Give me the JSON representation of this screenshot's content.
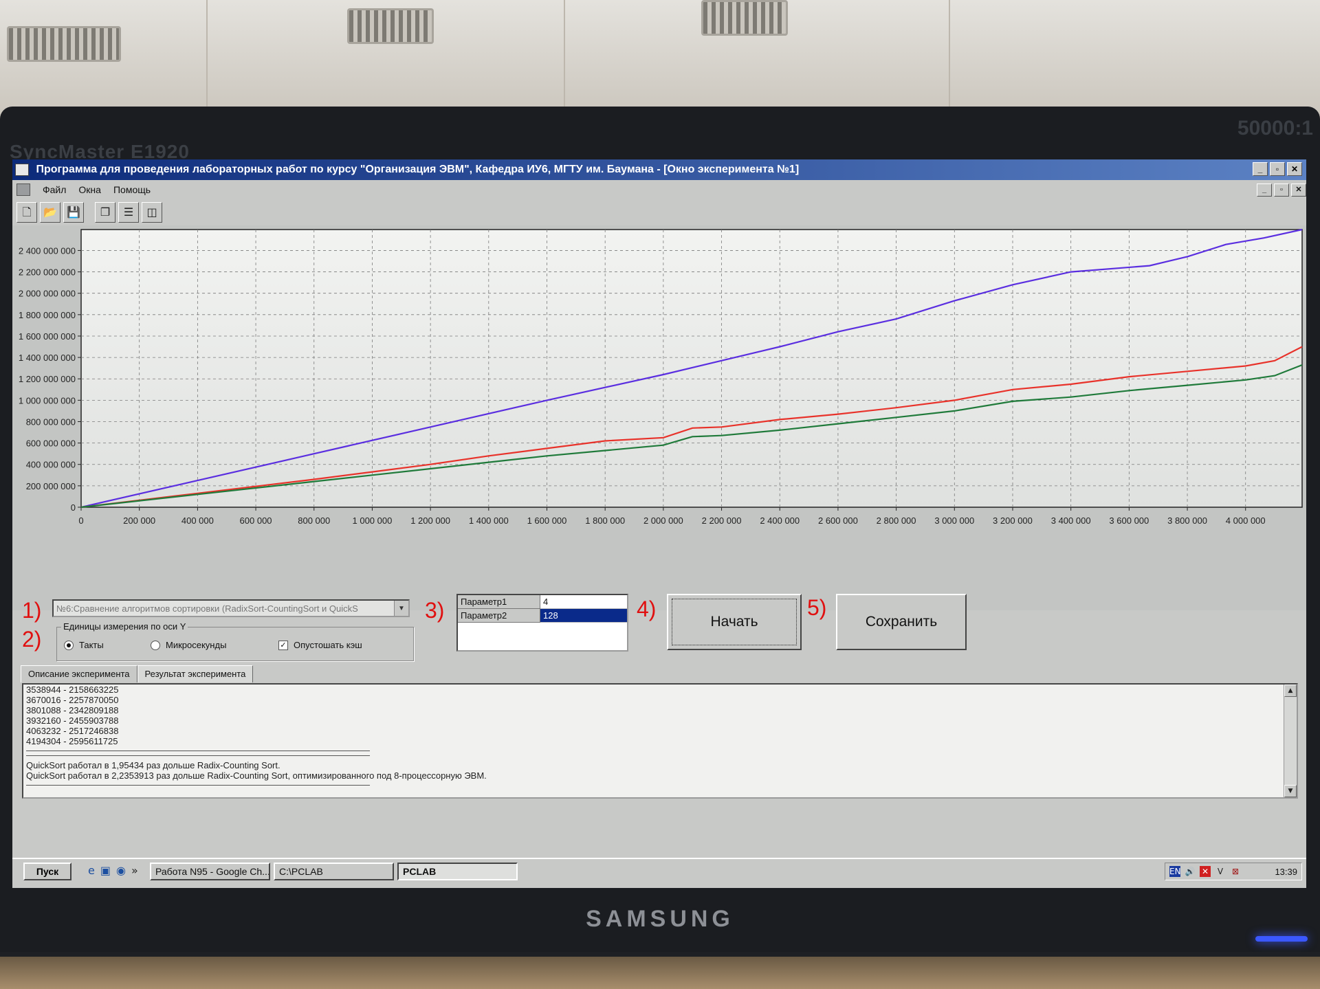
{
  "window": {
    "title": "Программа для проведения лабораторных работ по курсу \"Организация ЭВМ\", Кафедра ИУ6, МГТУ им. Баумана - [Окно эксперимента №1]",
    "controls": [
      "_",
      "▫",
      "✕"
    ]
  },
  "menu": {
    "items": [
      "Файл",
      "Окна",
      "Помощь"
    ]
  },
  "toolbar": {
    "icons": [
      "new-icon",
      "open-icon",
      "save-icon",
      "cascade-icon",
      "tile-horizontal-icon",
      "tile-vertical-icon"
    ]
  },
  "monitor": {
    "model": "SyncMaster E1920",
    "brand": "SAMSUNG",
    "contrast": "50000:1"
  },
  "chart_data": {
    "type": "line",
    "xlim": [
      0,
      4194304
    ],
    "ylim": [
      0,
      2595611725
    ],
    "x_ticks": [
      "0",
      "200 000",
      "400 000",
      "600 000",
      "800 000",
      "1 000 000",
      "1 200 000",
      "1 400 000",
      "1 600 000",
      "1 800 000",
      "2 000 000",
      "2 200 000",
      "2 400 000",
      "2 600 000",
      "2 800 000",
      "3 000 000",
      "3 200 000",
      "3 400 000",
      "3 600 000",
      "3 800 000",
      "4 000 000"
    ],
    "y_ticks": [
      "0",
      "200 000 000",
      "400 000 000",
      "600 000 000",
      "800 000 000",
      "1 000 000 000",
      "1 200 000 000",
      "1 400 000 000",
      "1 600 000 000",
      "1 800 000 000",
      "2 000 000 000",
      "2 200 000 000",
      "2 400 000 000"
    ],
    "grid": true,
    "series": [
      {
        "color": "#5a2ee0",
        "points": [
          [
            0,
            0
          ],
          [
            400000,
            250000000
          ],
          [
            800000,
            500000000
          ],
          [
            1200000,
            750000000
          ],
          [
            1600000,
            1000000000
          ],
          [
            2000000,
            1240000000
          ],
          [
            2400000,
            1500000000
          ],
          [
            2600000,
            1640000000
          ],
          [
            2800000,
            1760000000
          ],
          [
            3000000,
            1930000000
          ],
          [
            3200000,
            2080000000
          ],
          [
            3400000,
            2200000000
          ],
          [
            3670016,
            2257870050
          ],
          [
            3801088,
            2342809188
          ],
          [
            3932160,
            2455903788
          ],
          [
            4063232,
            2517246838
          ],
          [
            4194304,
            2595611725
          ]
        ]
      },
      {
        "color": "#e8322a",
        "points": [
          [
            0,
            0
          ],
          [
            400000,
            130000000
          ],
          [
            800000,
            260000000
          ],
          [
            1000000,
            330000000
          ],
          [
            1200000,
            400000000
          ],
          [
            1400000,
            480000000
          ],
          [
            1600000,
            550000000
          ],
          [
            1800000,
            620000000
          ],
          [
            2000000,
            650000000
          ],
          [
            2100000,
            740000000
          ],
          [
            2200000,
            750000000
          ],
          [
            2400000,
            820000000
          ],
          [
            2600000,
            870000000
          ],
          [
            2800000,
            930000000
          ],
          [
            3000000,
            1000000000
          ],
          [
            3200000,
            1100000000
          ],
          [
            3400000,
            1150000000
          ],
          [
            3600000,
            1220000000
          ],
          [
            3800000,
            1270000000
          ],
          [
            4000000,
            1320000000
          ],
          [
            4100000,
            1370000000
          ],
          [
            4194304,
            1500000000
          ]
        ]
      },
      {
        "color": "#1f7a3a",
        "points": [
          [
            0,
            0
          ],
          [
            400000,
            120000000
          ],
          [
            800000,
            240000000
          ],
          [
            1000000,
            300000000
          ],
          [
            1200000,
            360000000
          ],
          [
            1400000,
            420000000
          ],
          [
            1600000,
            480000000
          ],
          [
            1800000,
            530000000
          ],
          [
            2000000,
            580000000
          ],
          [
            2100000,
            660000000
          ],
          [
            2200000,
            670000000
          ],
          [
            2400000,
            720000000
          ],
          [
            2600000,
            780000000
          ],
          [
            2800000,
            840000000
          ],
          [
            3000000,
            900000000
          ],
          [
            3200000,
            990000000
          ],
          [
            3400000,
            1030000000
          ],
          [
            3600000,
            1090000000
          ],
          [
            3800000,
            1140000000
          ],
          [
            4000000,
            1190000000
          ],
          [
            4100000,
            1230000000
          ],
          [
            4194304,
            1330000000
          ]
        ]
      }
    ]
  },
  "controls": {
    "marks": [
      "1)",
      "2)",
      "3)",
      "4)",
      "5)"
    ],
    "experiment_select": "№6:Сравнение алгоритмов сортировки (RadixSort-CountingSort и QuickS",
    "y_units_group": "Единицы измерения по оси Y",
    "radio_ticks": "Такты",
    "radio_microseconds": "Микросекунды",
    "checkbox_flush_cache": "Опустошать кэш",
    "selected_unit": "ticks",
    "params": [
      {
        "name": "Параметр1",
        "value": "4"
      },
      {
        "name": "Параметр2",
        "value": "128"
      }
    ],
    "start_button": "Начать",
    "save_button": "Сохранить"
  },
  "tabs": {
    "description": "Описание эксперимента",
    "result": "Результат эксперимента"
  },
  "results": {
    "lines": [
      "3538944 - 2158663225",
      "3670016 - 2257870050",
      "3801088 - 2342809188",
      "3932160 - 2455903788",
      "4063232 - 2517246838",
      "4194304 - 2595611725"
    ],
    "summary": [
      "QuickSort работал в 1,95434 раз дольше Radix-Counting Sort.",
      "QuickSort работал в 2,2353913 раз дольше Radix-Counting Sort, оптимизированного под 8-процессорную ЭВМ."
    ]
  },
  "taskbar": {
    "start": "Пуск",
    "tasks": [
      "Работа N95 - Google Ch...",
      "C:\\PCLAB",
      "PCLAB"
    ],
    "lang": "EN",
    "clock": "13:39"
  }
}
